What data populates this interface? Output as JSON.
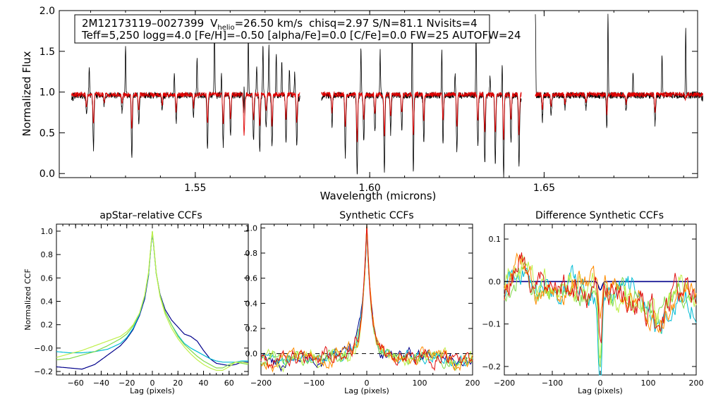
{
  "chart_data": [
    {
      "type": "line",
      "title": "",
      "xlabel": "Wavelength (microns)",
      "ylabel": "Normalized Flux",
      "xlim": [
        1.511,
        1.694
      ],
      "ylim": [
        -0.05,
        2.0
      ],
      "xticks": [
        1.55,
        1.6,
        1.65
      ],
      "xtick_labels": [
        "1.55",
        "1.60",
        "1.65"
      ],
      "yticks": [
        0.0,
        0.5,
        1.0,
        1.5,
        2.0
      ],
      "ytick_labels": [
        "0.0",
        "0.5",
        "1.0",
        "1.5",
        "2.0"
      ],
      "chips": [
        [
          1.5145,
          1.58
        ],
        [
          1.5862,
          1.6435
        ],
        [
          1.6475,
          1.6955
        ]
      ],
      "annotation": {
        "star": "2M12173119–0027399",
        "vhelio_prefix": "V",
        "vhelio_sub": "helio",
        "vhelio_value": "=26.50 km/s",
        "rest1": "chisq=2.97  S/N=81.1  Nvisits=4",
        "line2": "Teff=5,250 logg=4.0 [Fe/H]=–0.50 [alpha/Fe]=0.0 [C/Fe]=0.0 FW=25 AUTOFW=24"
      },
      "series": [
        {
          "name": "observed spectrum",
          "color": "#000000",
          "baseline": 0.96
        },
        {
          "name": "model spectrum",
          "color": "#e00000",
          "baseline": 0.97
        }
      ],
      "absorption_lines": [
        {
          "x": 1.5188,
          "min": 0.72
        },
        {
          "x": 1.5208,
          "min": 0.3
        },
        {
          "x": 1.5239,
          "min": 0.82
        },
        {
          "x": 1.529,
          "min": 0.77
        },
        {
          "x": 1.5318,
          "min": 0.2
        },
        {
          "x": 1.5338,
          "min": 0.62
        },
        {
          "x": 1.5405,
          "min": 0.76
        },
        {
          "x": 1.5445,
          "min": 0.62
        },
        {
          "x": 1.5495,
          "min": 0.7
        },
        {
          "x": 1.5535,
          "min": 0.3
        },
        {
          "x": 1.558,
          "min": 0.33
        },
        {
          "x": 1.5601,
          "min": 0.45
        },
        {
          "x": 1.564,
          "min": 0.05
        },
        {
          "x": 1.5667,
          "min": 0.4
        },
        {
          "x": 1.5685,
          "min": 0.25
        },
        {
          "x": 1.5703,
          "min": 0.58
        },
        {
          "x": 1.572,
          "min": 0.3
        },
        {
          "x": 1.576,
          "min": 0.38
        },
        {
          "x": 1.5791,
          "min": 0.35
        },
        {
          "x": 1.5892,
          "min": 0.6
        },
        {
          "x": 1.593,
          "min": 0.22
        },
        {
          "x": 1.5964,
          "min": -0.05
        },
        {
          "x": 1.5983,
          "min": 0.4
        },
        {
          "x": 1.6015,
          "min": 0.5
        },
        {
          "x": 1.6042,
          "min": 0.03
        },
        {
          "x": 1.606,
          "min": 0.5
        },
        {
          "x": 1.6092,
          "min": 0.55
        },
        {
          "x": 1.6125,
          "min": 0.02
        },
        {
          "x": 1.6155,
          "min": 0.4
        },
        {
          "x": 1.621,
          "min": 0.35
        },
        {
          "x": 1.625,
          "min": 0.28
        },
        {
          "x": 1.631,
          "min": 0.35
        },
        {
          "x": 1.633,
          "min": 0.12
        },
        {
          "x": 1.636,
          "min": 0.12
        },
        {
          "x": 1.6384,
          "min": -0.05
        },
        {
          "x": 1.6405,
          "min": 0.4
        },
        {
          "x": 1.6428,
          "min": 0.08
        },
        {
          "x": 1.6495,
          "min": 0.65
        },
        {
          "x": 1.652,
          "min": 0.7
        },
        {
          "x": 1.656,
          "min": 0.78
        },
        {
          "x": 1.662,
          "min": 0.8
        },
        {
          "x": 1.668,
          "min": 0.55
        },
        {
          "x": 1.6735,
          "min": 0.78
        },
        {
          "x": 1.6818,
          "min": 0.6
        },
        {
          "x": 1.6905,
          "min": 0.88
        }
      ],
      "spikes": [
        {
          "x": 1.5196,
          "max": 1.27
        },
        {
          "x": 1.53,
          "max": 1.6
        },
        {
          "x": 1.544,
          "max": 1.25
        },
        {
          "x": 1.5505,
          "max": 1.45
        },
        {
          "x": 1.5555,
          "max": 1.87
        },
        {
          "x": 1.5575,
          "max": 1.2
        },
        {
          "x": 1.564,
          "max": 2.0
        },
        {
          "x": 1.5652,
          "max": 1.7
        },
        {
          "x": 1.5676,
          "max": 1.35
        },
        {
          "x": 1.5694,
          "max": 1.58
        },
        {
          "x": 1.5711,
          "max": 1.57
        },
        {
          "x": 1.5732,
          "max": 1.5
        },
        {
          "x": 1.5748,
          "max": 1.35
        },
        {
          "x": 1.577,
          "max": 1.28
        },
        {
          "x": 1.5785,
          "max": 1.25
        },
        {
          "x": 1.5975,
          "max": 1.55
        },
        {
          "x": 1.603,
          "max": 1.5
        },
        {
          "x": 1.6122,
          "max": 2.0
        },
        {
          "x": 1.6207,
          "max": 1.62
        },
        {
          "x": 1.6245,
          "max": 1.25
        },
        {
          "x": 1.6305,
          "max": 1.7
        },
        {
          "x": 1.6345,
          "max": 1.18
        },
        {
          "x": 1.638,
          "max": 1.4
        },
        {
          "x": 1.6475,
          "max": 2.0
        },
        {
          "x": 1.6683,
          "max": 2.0
        },
        {
          "x": 1.6755,
          "max": 1.22
        },
        {
          "x": 1.6838,
          "max": 1.45
        },
        {
          "x": 1.6906,
          "max": 1.85
        }
      ]
    },
    {
      "type": "line",
      "title": "apStar–relative CCFs",
      "xlabel": "Lag (pixels)",
      "ylabel": "Normalized CCF",
      "xlim": [
        -75,
        75
      ],
      "ylim": [
        -0.23,
        1.06
      ],
      "xticks": [
        -60,
        -40,
        -20,
        0,
        20,
        40,
        60
      ],
      "xtick_labels": [
        "−60",
        "−40",
        "−20",
        "0",
        "20",
        "40",
        "60"
      ],
      "yticks": [
        -0.2,
        0.0,
        0.2,
        0.4,
        0.6,
        0.8,
        1.0
      ],
      "ytick_labels": [
        "−0.2",
        "−0.0",
        "0.2",
        "0.4",
        "0.6",
        "0.8",
        "1.0"
      ],
      "series": [
        {
          "name": "ccf-1",
          "color": "#00008b",
          "x": [
            -75,
            -65,
            -55,
            -45,
            -35,
            -25,
            -20,
            -15,
            -10,
            -6,
            -3,
            -1,
            0,
            1,
            3,
            6,
            10,
            15,
            20,
            25,
            30,
            35,
            40,
            45,
            50,
            55,
            60,
            65,
            70,
            75
          ],
          "y": [
            -0.16,
            -0.17,
            -0.18,
            -0.14,
            -0.06,
            0.02,
            0.08,
            0.16,
            0.28,
            0.42,
            0.62,
            0.88,
            0.98,
            0.88,
            0.64,
            0.46,
            0.33,
            0.24,
            0.18,
            0.12,
            0.1,
            0.06,
            -0.02,
            -0.09,
            -0.13,
            -0.14,
            -0.15,
            -0.14,
            -0.12,
            -0.12
          ]
        },
        {
          "name": "ccf-2",
          "color": "#00bcd4",
          "x": [
            -75,
            -65,
            -55,
            -45,
            -35,
            -25,
            -20,
            -15,
            -10,
            -6,
            -3,
            -1,
            0,
            1,
            3,
            6,
            10,
            15,
            20,
            25,
            30,
            35,
            40,
            45,
            50,
            55,
            60,
            65,
            70,
            75
          ],
          "y": [
            -0.03,
            -0.04,
            -0.04,
            -0.03,
            -0.01,
            0.04,
            0.09,
            0.17,
            0.29,
            0.44,
            0.63,
            0.88,
            0.99,
            0.88,
            0.64,
            0.45,
            0.31,
            0.2,
            0.11,
            0.04,
            0.0,
            -0.03,
            -0.06,
            -0.09,
            -0.11,
            -0.12,
            -0.12,
            -0.12,
            -0.11,
            -0.11
          ]
        },
        {
          "name": "ccf-3",
          "color": "#7fd94a",
          "x": [
            -75,
            -65,
            -55,
            -45,
            -35,
            -25,
            -20,
            -15,
            -10,
            -6,
            -3,
            -1,
            0,
            1,
            3,
            6,
            10,
            15,
            20,
            25,
            30,
            35,
            40,
            45,
            50,
            55,
            60,
            65,
            70,
            75
          ],
          "y": [
            -0.1,
            -0.09,
            -0.06,
            -0.03,
            0.02,
            0.08,
            0.12,
            0.19,
            0.3,
            0.45,
            0.64,
            0.89,
            1.0,
            0.89,
            0.65,
            0.45,
            0.31,
            0.2,
            0.1,
            0.03,
            -0.02,
            -0.07,
            -0.11,
            -0.14,
            -0.17,
            -0.17,
            -0.14,
            -0.12,
            -0.13,
            -0.14
          ]
        },
        {
          "name": "ccf-4",
          "color": "#bff04a",
          "x": [
            -75,
            -65,
            -55,
            -45,
            -35,
            -25,
            -20,
            -15,
            -10,
            -6,
            -3,
            -1,
            0,
            1,
            3,
            6,
            10,
            15,
            20,
            25,
            30,
            35,
            40,
            45,
            50,
            55,
            60,
            65,
            70,
            75
          ],
          "y": [
            -0.08,
            -0.05,
            -0.02,
            0.02,
            0.06,
            0.1,
            0.14,
            0.2,
            0.3,
            0.45,
            0.65,
            0.89,
            1.0,
            0.89,
            0.64,
            0.44,
            0.29,
            0.17,
            0.08,
            0.01,
            -0.05,
            -0.1,
            -0.14,
            -0.17,
            -0.19,
            -0.19,
            -0.16,
            -0.12,
            -0.12,
            -0.13
          ]
        }
      ]
    },
    {
      "type": "line",
      "title": "Synthetic CCFs",
      "xlabel": "Lag (pixels)",
      "ylabel": "",
      "xlim": [
        -200,
        200
      ],
      "ylim": [
        -0.17,
        1.03
      ],
      "xticks": [
        -200,
        -100,
        0,
        100,
        200
      ],
      "xtick_labels": [
        "−200",
        "−100",
        "0",
        "100",
        "200"
      ],
      "yticks": [
        0.0,
        0.2,
        0.4,
        0.6,
        0.8,
        1.0
      ],
      "ytick_labels": [
        "0.0",
        "0.2",
        "0.4",
        "0.6",
        "0.8",
        "1.0"
      ],
      "reference_line": {
        "y": 0.0,
        "style": "dashed",
        "color": "#000000"
      },
      "series": [
        {
          "name": "synthetic-1",
          "color": "#00008b",
          "amp": 0.035,
          "peak": 1.0,
          "seed": 1
        },
        {
          "name": "synthetic-2",
          "color": "#00bcd4",
          "amp": 0.03,
          "peak": 0.98,
          "seed": 2
        },
        {
          "name": "synthetic-3",
          "color": "#7fd94a",
          "amp": 0.035,
          "peak": 0.99,
          "seed": 3
        },
        {
          "name": "synthetic-4",
          "color": "#bff04a",
          "amp": 0.04,
          "peak": 0.97,
          "seed": 4
        },
        {
          "name": "synthetic-5",
          "color": "#ff8c00",
          "amp": 0.04,
          "peak": 0.98,
          "seed": 5
        },
        {
          "name": "synthetic-6",
          "color": "#e01010",
          "amp": 0.045,
          "peak": 0.99,
          "seed": 6
        }
      ]
    },
    {
      "type": "line",
      "title": "Difference Synthetic CCFs",
      "xlabel": "Lag (pixels)",
      "ylabel": "",
      "xlim": [
        -200,
        200
      ],
      "ylim": [
        -0.22,
        0.135
      ],
      "xticks": [
        -200,
        -100,
        0,
        100,
        200
      ],
      "xtick_labels": [
        "−200",
        "−100",
        "0",
        "100",
        "200"
      ],
      "yticks": [
        -0.2,
        -0.1,
        0.0,
        0.1
      ],
      "ytick_labels": [
        "−0.2",
        "−0.1",
        "0.0",
        "0.1"
      ],
      "series": [
        {
          "name": "difference-1",
          "color": "#00008b",
          "amp": 0.0,
          "dip": -0.02,
          "seed": 11
        },
        {
          "name": "difference-2",
          "color": "#00bcd4",
          "amp": 0.03,
          "dip": -0.21,
          "seed": 12
        },
        {
          "name": "difference-3",
          "color": "#7fd94a",
          "amp": 0.03,
          "dip": -0.19,
          "seed": 13
        },
        {
          "name": "difference-4",
          "color": "#bff04a",
          "amp": 0.035,
          "dip": -0.17,
          "seed": 14
        },
        {
          "name": "difference-5",
          "color": "#ff8c00",
          "amp": 0.03,
          "dip": -0.12,
          "seed": 15
        },
        {
          "name": "difference-6",
          "color": "#e01010",
          "amp": 0.035,
          "dip": -0.13,
          "seed": 16
        }
      ]
    }
  ]
}
